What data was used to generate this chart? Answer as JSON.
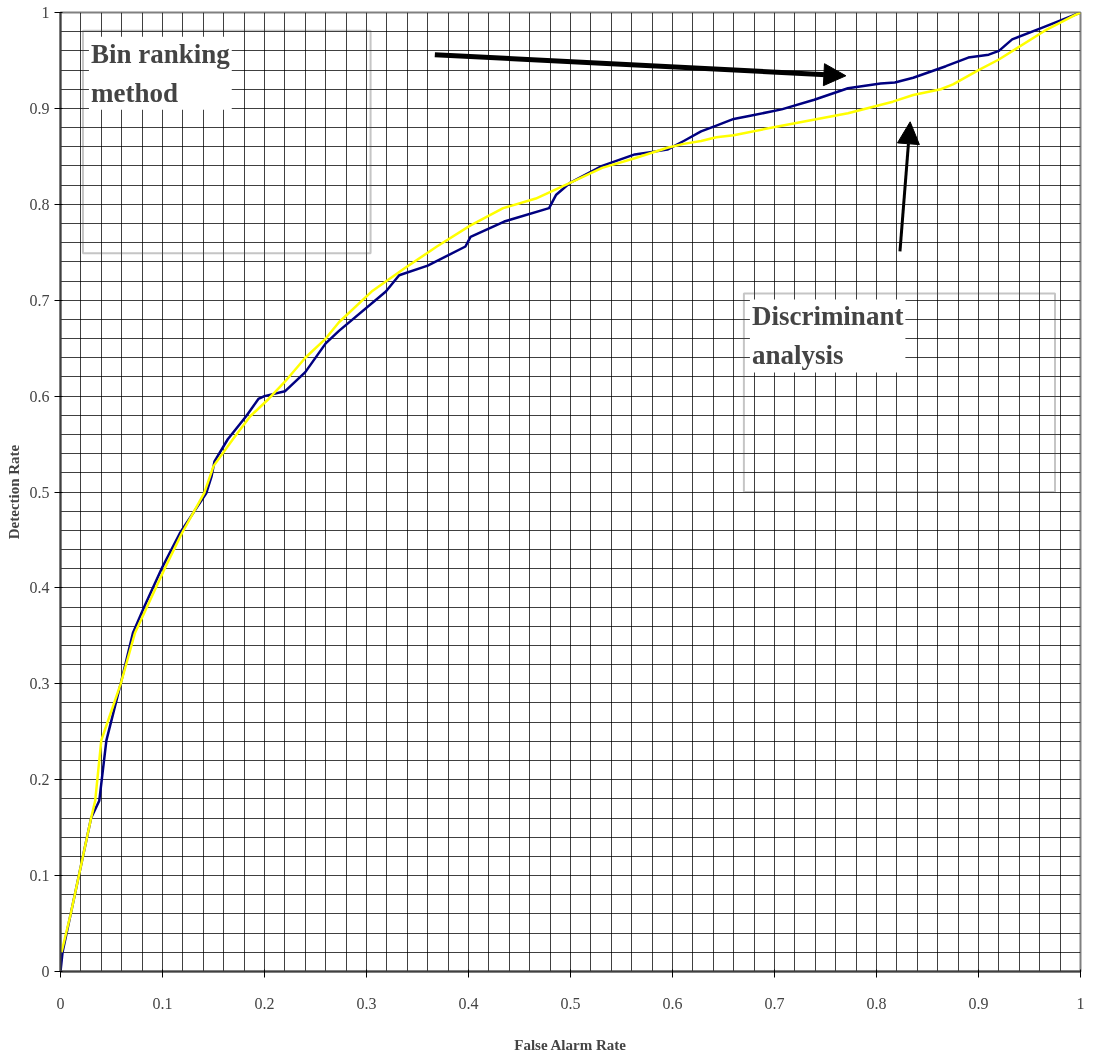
{
  "chart_data": {
    "type": "line",
    "xlabel": "False Alarm Rate",
    "ylabel": "Detection Rate",
    "xlim": [
      0,
      1
    ],
    "ylim": [
      0,
      1
    ],
    "xticks": [
      0,
      0.1,
      0.2,
      0.3,
      0.4,
      0.5,
      0.6,
      0.7,
      0.8,
      0.9,
      1
    ],
    "yticks": [
      0,
      0.1,
      0.2,
      0.3,
      0.4,
      0.5,
      0.6,
      0.7,
      0.8,
      0.9,
      1
    ],
    "grid": true,
    "annotations": [
      "Bin ranking method",
      "Discriminant analysis"
    ],
    "series": [
      {
        "color": "#000080",
        "x": [
          0,
          0.002,
          0.01,
          0.02,
          0.03,
          0.038,
          0.045,
          0.059,
          0.071,
          0.082,
          0.1,
          0.117,
          0.143,
          0.148,
          0.151,
          0.164,
          0.182,
          0.194,
          0.2,
          0.22,
          0.24,
          0.26,
          0.273,
          0.319,
          0.332,
          0.36,
          0.397,
          0.402,
          0.435,
          0.479,
          0.486,
          0.499,
          0.531,
          0.563,
          0.595,
          0.611,
          0.628,
          0.643,
          0.66,
          0.675,
          0.707,
          0.739,
          0.772,
          0.804,
          0.818,
          0.836,
          0.868,
          0.89,
          0.91,
          0.92,
          0.933,
          0.962,
          1
        ],
        "values": [
          0,
          0.02,
          0.06,
          0.11,
          0.16,
          0.178,
          0.241,
          0.3,
          0.353,
          0.38,
          0.422,
          0.457,
          0.499,
          0.516,
          0.532,
          0.555,
          0.579,
          0.597,
          0.6,
          0.605,
          0.625,
          0.655,
          0.668,
          0.709,
          0.726,
          0.736,
          0.756,
          0.766,
          0.782,
          0.796,
          0.81,
          0.822,
          0.84,
          0.852,
          0.857,
          0.866,
          0.876,
          0.882,
          0.889,
          0.892,
          0.899,
          0.909,
          0.921,
          0.926,
          0.927,
          0.932,
          0.944,
          0.953,
          0.956,
          0.96,
          0.972,
          0.984,
          1
        ]
      },
      {
        "color": "#ffff00",
        "x": [
          0.001,
          0.01,
          0.02,
          0.03,
          0.034,
          0.04,
          0.059,
          0.073,
          0.103,
          0.119,
          0.141,
          0.15,
          0.169,
          0.186,
          0.204,
          0.22,
          0.24,
          0.26,
          0.273,
          0.305,
          0.337,
          0.369,
          0.402,
          0.434,
          0.466,
          0.499,
          0.531,
          0.563,
          0.595,
          0.611,
          0.628,
          0.643,
          0.66,
          0.707,
          0.772,
          0.816,
          0.836,
          0.863,
          0.875,
          0.9,
          0.92,
          0.965,
          0.994,
          1
        ],
        "values": [
          0.02,
          0.06,
          0.11,
          0.16,
          0.178,
          0.241,
          0.3,
          0.353,
          0.422,
          0.457,
          0.499,
          0.527,
          0.555,
          0.579,
          0.597,
          0.615,
          0.64,
          0.66,
          0.677,
          0.709,
          0.733,
          0.756,
          0.778,
          0.796,
          0.806,
          0.822,
          0.838,
          0.848,
          0.859,
          0.863,
          0.866,
          0.87,
          0.872,
          0.882,
          0.895,
          0.907,
          0.914,
          0.92,
          0.925,
          0.94,
          0.951,
          0.981,
          0.997,
          1
        ]
      }
    ]
  }
}
